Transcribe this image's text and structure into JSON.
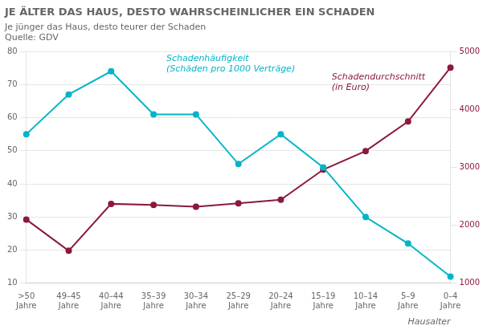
{
  "chart_data": {
    "type": "line",
    "title": "JE ÄLTER DAS HAUS, DESTO WAHRSCHEINLICHER EIN SCHADEN",
    "subtitle": "Je jünger das Haus, desto teurer der Schaden",
    "source": "Quelle: GDV",
    "x_label": "Hausalter",
    "categories": [
      ">50\nJahre",
      "49–45\nJahre",
      "40–44\nJahre",
      "35–39\nJahre",
      "30–34\nJahre",
      "25–29\nJahre",
      "20–24\nJahre",
      "15–19\nJahre",
      "10–14\nJahre",
      "5–9\nJahre",
      "0–4\nJahre"
    ],
    "series": [
      {
        "color": "#00B5C8",
        "marker": "circle",
        "values": [
          55,
          67,
          74,
          61,
          61,
          46,
          55,
          45,
          30,
          22,
          12
        ]
      },
      {
        "color": "#8B1A3A",
        "marker": "circle",
        "axis": "y2",
        "values": [
          2100,
          1560,
          2370,
          2350,
          2320,
          2380,
          2440,
          2960,
          3280,
          3790,
          4720
        ]
      }
    ],
    "ylim": [
      10,
      80
    ],
    "yticks": [
      10,
      20,
      30,
      40,
      50,
      60,
      70,
      80
    ],
    "y2lim": [
      1000,
      5000
    ],
    "y2ticks": [
      1000,
      2000,
      3000,
      4000,
      5000
    ],
    "grid": true,
    "annotations": [
      {
        "text": "Schadenhäufigkeit\n(Schäden pro 1000 Verträge)",
        "color": "#00B5C8"
      },
      {
        "text": "Schadendurchschnitt\n(in Euro)",
        "color": "#8B1A3A"
      }
    ]
  }
}
